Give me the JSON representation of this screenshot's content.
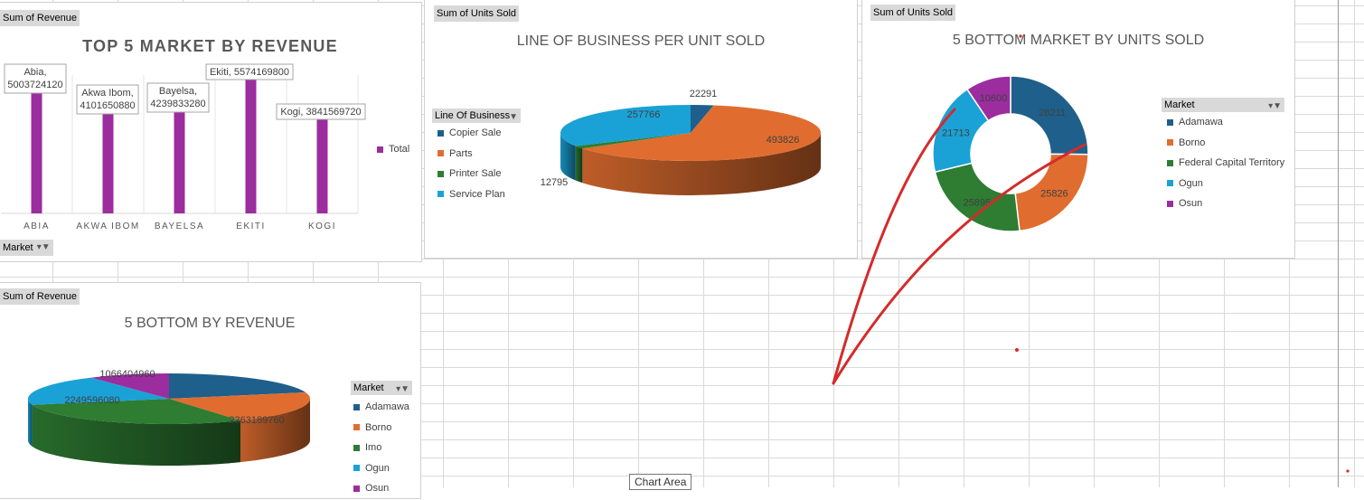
{
  "chart_data": [
    {
      "type": "bar",
      "field_button": "Sum of Revenue",
      "title": "TOP 5 MARKET BY REVENUE",
      "categories": [
        "ABIA",
        "AKWA IBOM",
        "BAYELSA",
        "EKITI",
        "KOGI"
      ],
      "series": [
        {
          "name": "Total",
          "values": [
            5003724120,
            4101650880,
            4239833280,
            5574169800,
            3841569720
          ]
        }
      ],
      "data_labels": [
        "Abia, 5003724120",
        "Akwa Ibom, 4101650880",
        "Bayelsa, 4239833280",
        "Ekiti, 5574169800",
        "Kogi, 3841569720"
      ],
      "legend": [
        "Total"
      ],
      "axis_field_button": "Market",
      "ylim": [
        0,
        6000000000
      ],
      "color": "#9b2d9f"
    },
    {
      "type": "pie",
      "field_button": "Sum of Units Sold",
      "title": "LINE OF BUSINESS PER UNIT SOLD",
      "legend_header": "Line Of Business",
      "categories": [
        "Copier Sale",
        "Parts",
        "Printer Sale",
        "Service Plan"
      ],
      "values": [
        22291,
        493826,
        12795,
        257766
      ],
      "colors": [
        "#1f5f8b",
        "#e06d2f",
        "#2e7d32",
        "#1aa2d6"
      ]
    },
    {
      "type": "pie",
      "subtype": "doughnut",
      "field_button": "Sum of Units Sold",
      "title": "5 BOTTOM MARKET BY UNITS SOLD",
      "legend_header": "Market",
      "categories": [
        "Adamawa",
        "Borno",
        "Federal Capital Territory",
        "Ogun",
        "Osun"
      ],
      "values": [
        28211,
        25826,
        25895,
        21713,
        10600
      ],
      "colors": [
        "#1f5f8b",
        "#e06d2f",
        "#2e7d32",
        "#1aa2d6",
        "#9b2d9f"
      ]
    },
    {
      "type": "pie",
      "field_button": "Sum of Revenue",
      "title": "5 BOTTOM BY REVENUE",
      "legend_header": "Market",
      "categories": [
        "Adamawa",
        "Borno",
        "Imo",
        "Ogun",
        "Osun"
      ],
      "values": [
        2406077520,
        2363189760,
        3393999000,
        2249596080,
        1066404960
      ],
      "value_labels": [
        "",
        "2363189760",
        "",
        "2249596080",
        "1066404960"
      ],
      "colors": [
        "#1f5f8b",
        "#e06d2f",
        "#2e7d32",
        "#1aa2d6",
        "#9b2d9f"
      ]
    }
  ],
  "tooltip": "Chart Area"
}
